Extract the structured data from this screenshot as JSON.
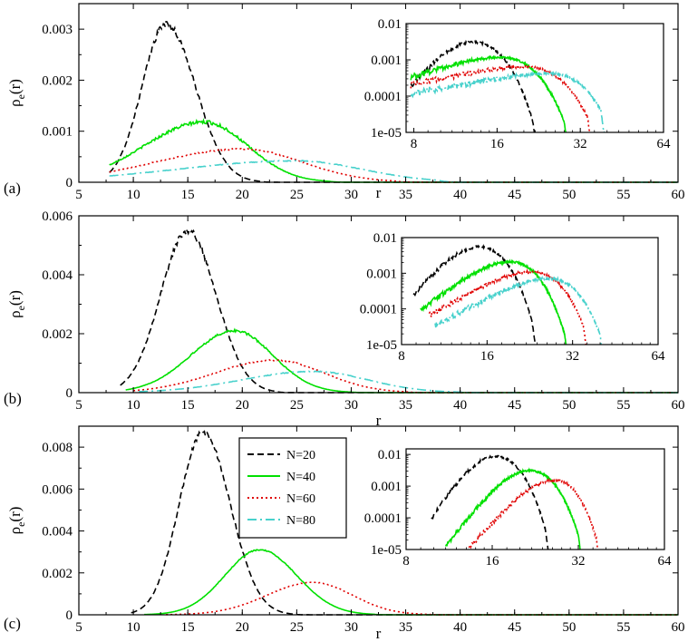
{
  "chart_data": [
    {
      "panel_label": "(a)",
      "type": "line",
      "xlabel": "r",
      "ylabel_main": "ρ",
      "ylabel_sub": "e",
      "ylabel_tail": "(r)",
      "xlim": [
        5,
        60
      ],
      "ylim": [
        0,
        0.0035
      ],
      "xticks": [
        5,
        10,
        15,
        20,
        25,
        30,
        35,
        40,
        45,
        50,
        55,
        60
      ],
      "yticks": [
        0,
        0.001,
        0.002,
        0.003
      ],
      "ytick_labels": [
        "0",
        "0.001",
        "0.002",
        "0.003"
      ],
      "series": [
        {
          "name": "N=20",
          "color": "#000000",
          "style": "dashed",
          "start": 7.8,
          "peak_r": 13.0,
          "peak": 0.0031,
          "end": 21.5,
          "sigma_left": 2.2,
          "sigma_right": 2.7,
          "noise": 0.02
        },
        {
          "name": "N=40",
          "color": "#00e000",
          "style": "solid",
          "start": 7.8,
          "peak_r": 16.5,
          "peak": 0.00118,
          "end": 28.0,
          "sigma_left": 5.5,
          "sigma_right": 4.0,
          "noise": 0.03
        },
        {
          "name": "N=60",
          "color": "#e00000",
          "style": "dotted",
          "start": 7.8,
          "peak_r": 20.0,
          "peak": 0.00065,
          "end": 34.0,
          "sigma_left": 8.0,
          "sigma_right": 5.5,
          "noise": 0.02
        },
        {
          "name": "N=80",
          "color": "#48d1cc",
          "style": "dashdot",
          "start": 7.8,
          "peak_r": 25.0,
          "peak": 0.00042,
          "end": 38.0,
          "sigma_left": 11.0,
          "sigma_right": 6.0,
          "noise": 0.02
        }
      ],
      "inset": {
        "xscale": "log2",
        "yscale": "log10",
        "xlim": [
          7.5,
          64
        ],
        "ylim": [
          1e-05,
          0.01
        ],
        "xticks": [
          8,
          16,
          32,
          64
        ],
        "yticks": [
          1e-05,
          0.0001,
          0.001,
          0.01
        ],
        "ytick_labels": [
          "1e-05",
          "0.0001",
          "0.001",
          "0.01"
        ]
      }
    },
    {
      "panel_label": "(b)",
      "type": "line",
      "xlabel": "r",
      "ylabel_main": "ρ",
      "ylabel_sub": "e",
      "ylabel_tail": "(r)",
      "xlim": [
        5,
        60
      ],
      "ylim": [
        0,
        0.006
      ],
      "xticks": [
        5,
        10,
        15,
        20,
        25,
        30,
        35,
        40,
        45,
        50,
        55,
        60
      ],
      "yticks": [
        0,
        0.002,
        0.004,
        0.006
      ],
      "ytick_labels": [
        "0",
        "0.002",
        "0.004",
        "0.006"
      ],
      "series": [
        {
          "name": "N=20",
          "color": "#000000",
          "style": "dashed",
          "start": 8.8,
          "peak_r": 15.0,
          "peak": 0.0055,
          "end": 23.0,
          "sigma_left": 2.5,
          "sigma_right": 2.6,
          "noise": 0.02
        },
        {
          "name": "N=40",
          "color": "#00e000",
          "style": "solid",
          "start": 9.3,
          "peak_r": 19.3,
          "peak": 0.0021,
          "end": 30.0,
          "sigma_left": 4.0,
          "sigma_right": 3.5,
          "noise": 0.02
        },
        {
          "name": "N=60",
          "color": "#e00000",
          "style": "dotted",
          "start": 10.0,
          "peak_r": 23.0,
          "peak": 0.0011,
          "end": 35.0,
          "sigma_left": 5.5,
          "sigma_right": 4.5,
          "noise": 0.02
        },
        {
          "name": "N=80",
          "color": "#48d1cc",
          "style": "dashdot",
          "start": 10.5,
          "peak_r": 26.5,
          "peak": 0.00072,
          "end": 40.0,
          "sigma_left": 6.5,
          "sigma_right": 5.0,
          "noise": 0.02
        }
      ],
      "inset": {
        "xscale": "log2",
        "yscale": "log10",
        "xlim": [
          8,
          64
        ],
        "ylim": [
          1e-05,
          0.01
        ],
        "xticks": [
          8,
          16,
          32,
          64
        ],
        "yticks": [
          1e-05,
          0.0001,
          0.001,
          0.01
        ],
        "ytick_labels": [
          "1e-05",
          "0.0001",
          "0.001",
          "0.01"
        ]
      }
    },
    {
      "panel_label": "(c)",
      "type": "line",
      "xlabel": "r",
      "ylabel_main": "ρ",
      "ylabel_sub": "e",
      "ylabel_tail": "(r)",
      "xlim": [
        5,
        60
      ],
      "ylim": [
        0,
        0.009
      ],
      "xticks": [
        5,
        10,
        15,
        20,
        25,
        30,
        35,
        40,
        45,
        50,
        55,
        60
      ],
      "yticks": [
        0,
        0.002,
        0.004,
        0.006,
        0.008
      ],
      "ytick_labels": [
        "0",
        "0.002",
        "0.004",
        "0.006",
        "0.008"
      ],
      "legend": {
        "placement": "upper-center",
        "entries": [
          {
            "label": "N=20",
            "color": "#000000",
            "style": "dashed"
          },
          {
            "label": "N=40",
            "color": "#00e000",
            "style": "solid"
          },
          {
            "label": "N=60",
            "color": "#e00000",
            "style": "dotted"
          },
          {
            "label": "N=80",
            "color": "#48d1cc",
            "style": "dashdot"
          }
        ]
      },
      "series": [
        {
          "name": "N=20",
          "color": "#000000",
          "style": "dashed",
          "start": 9.8,
          "peak_r": 16.4,
          "peak": 0.0087,
          "end": 24.5,
          "sigma_left": 2.2,
          "sigma_right": 2.5,
          "noise": 0.015
        },
        {
          "name": "N=40",
          "color": "#00e000",
          "style": "solid",
          "start": 11.0,
          "peak_r": 21.6,
          "peak": 0.0031,
          "end": 32.0,
          "sigma_left": 3.2,
          "sigma_right": 3.4,
          "noise": 0.01
        },
        {
          "name": "N=60",
          "color": "#e00000",
          "style": "dotted",
          "start": 13.0,
          "peak_r": 26.5,
          "peak": 0.00155,
          "end": 37.0,
          "sigma_left": 4.2,
          "sigma_right": 3.6,
          "noise": 0.01
        }
      ],
      "inset": {
        "xscale": "log2",
        "yscale": "log10",
        "xlim": [
          8,
          64
        ],
        "ylim": [
          1e-05,
          0.015
        ],
        "xticks": [
          8,
          16,
          32,
          64
        ],
        "yticks": [
          1e-05,
          0.0001,
          0.001,
          0.01
        ],
        "ytick_labels": [
          "1e-05",
          "0.0001",
          "0.001",
          "0.01"
        ]
      }
    }
  ]
}
